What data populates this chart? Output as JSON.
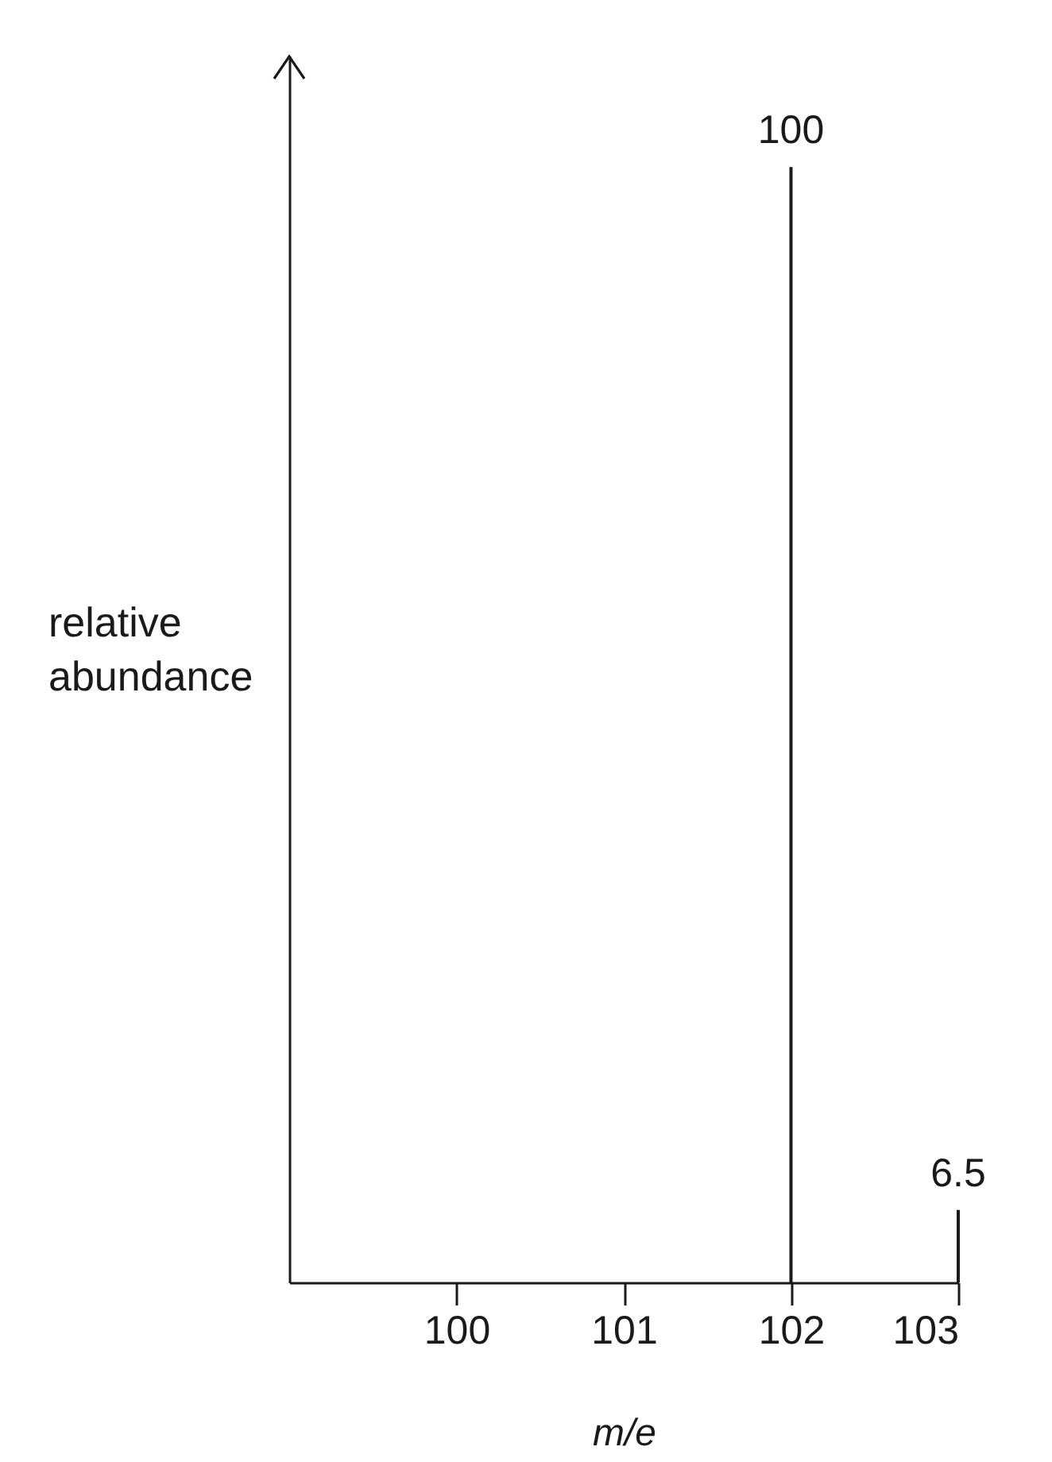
{
  "chart_data": {
    "type": "bar",
    "xlabel": "m/e",
    "ylabel": "relative abundance",
    "x": [
      102,
      103
    ],
    "values": [
      100,
      6.5
    ],
    "color": "#1a1a1a",
    "xlim": [
      99,
      103
    ],
    "xticks": [
      100,
      101,
      102,
      103
    ],
    "ylim": [
      0,
      110
    ],
    "data_labels": true,
    "tick_labels": "x",
    "grid": false
  }
}
